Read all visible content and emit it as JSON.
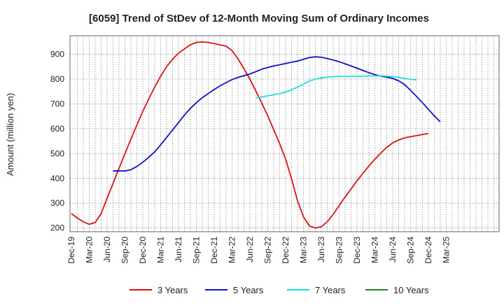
{
  "chart_data": {
    "type": "line",
    "title": "[6059]  Trend of StDev of 12-Month Moving Sum of Ordinary Incomes",
    "xlabel": "",
    "ylabel": "Amount (million yen)",
    "ylim": [
      185,
      975
    ],
    "yticks": [
      200,
      300,
      400,
      500,
      600,
      700,
      800,
      900
    ],
    "xticks": [
      "Dec-19",
      "Mar-20",
      "Jun-20",
      "Sep-20",
      "Dec-20",
      "Mar-21",
      "Jun-21",
      "Sep-21",
      "Dec-21",
      "Mar-22",
      "Jun-22",
      "Sep-22",
      "Dec-22",
      "Mar-23",
      "Jun-23",
      "Sep-23",
      "Dec-23",
      "Mar-24",
      "Jun-24",
      "Sep-24",
      "Dec-24",
      "Mar-25"
    ],
    "grid": true,
    "legend_position": "bottom",
    "series": [
      {
        "name": "3 Years",
        "color": "#dd1111",
        "start_index": 0,
        "values": [
          258,
          240,
          225,
          215,
          222,
          258,
          320,
          380,
          440,
          500,
          558,
          615,
          670,
          720,
          768,
          812,
          850,
          880,
          905,
          922,
          938,
          948,
          950,
          948,
          943,
          938,
          933,
          915,
          882,
          842,
          800,
          752,
          703,
          652,
          596,
          540,
          478,
          398,
          310,
          245,
          208,
          200,
          205,
          225,
          255,
          290,
          325,
          357,
          390,
          420,
          450,
          477,
          502,
          525,
          543,
          555,
          563,
          568,
          572,
          577,
          581
        ]
      },
      {
        "name": "5 Years",
        "color": "#1111cc",
        "start_index": 7,
        "values": [
          430,
          430,
          430,
          435,
          448,
          465,
          485,
          507,
          535,
          565,
          595,
          625,
          655,
          682,
          705,
          725,
          742,
          758,
          773,
          786,
          798,
          807,
          814,
          821,
          830,
          840,
          847,
          853,
          858,
          863,
          868,
          873,
          880,
          887,
          890,
          888,
          883,
          877,
          870,
          862,
          853,
          844,
          835,
          826,
          818,
          812,
          808,
          803,
          793,
          778,
          755,
          730,
          705,
          678,
          652,
          627
        ]
      },
      {
        "name": "7 Years",
        "color": "#22dddd",
        "start_index": 31,
        "values": [
          725,
          728,
          733,
          737,
          742,
          748,
          757,
          768,
          780,
          792,
          800,
          805,
          808,
          810,
          811,
          811,
          811,
          811,
          812,
          813,
          813,
          813,
          812,
          810,
          807,
          803,
          799,
          797
        ]
      },
      {
        "name": "10 Years",
        "color": "#228822",
        "start_index": 0,
        "values": []
      }
    ]
  }
}
